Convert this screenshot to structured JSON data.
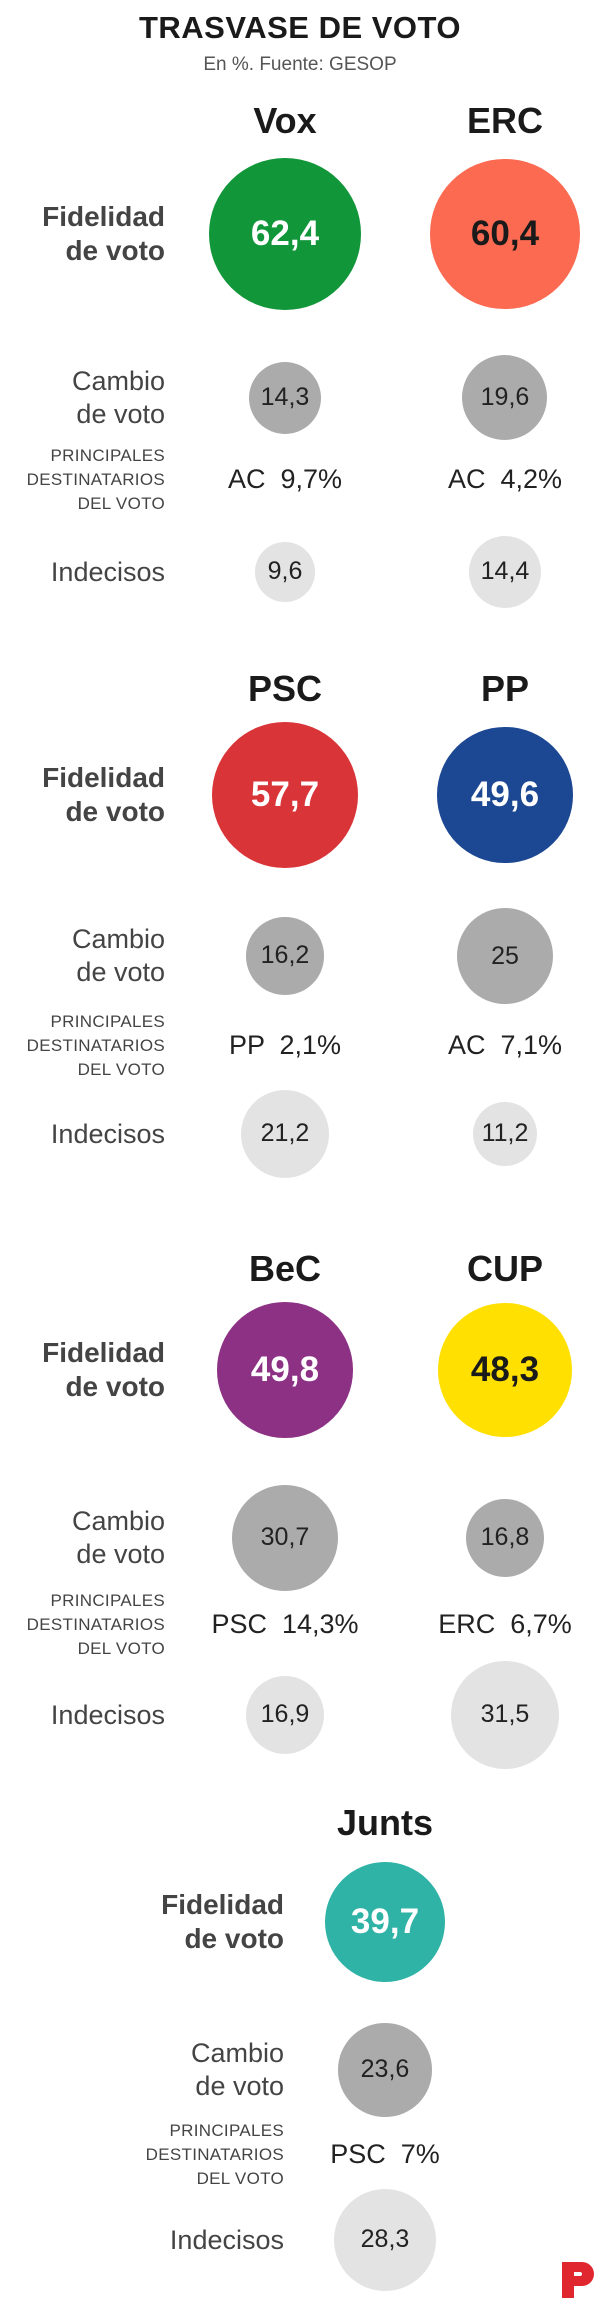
{
  "title": "TRASVASE DE VOTO",
  "subtitle": "En %. Fuente: GESOP",
  "labels": {
    "fidelidad": [
      "Fidelidad",
      "de voto"
    ],
    "cambio": [
      "Cambio",
      "de voto"
    ],
    "principales": [
      "PRINCIPALES",
      "DESTINATARIOS",
      "DEL VOTO"
    ],
    "indecisos": "Indecisos"
  },
  "chart_data": {
    "type": "proportional circles",
    "unit": "%",
    "source": "GESOP",
    "series_rows": [
      "Fidelidad de voto",
      "Cambio de voto",
      "Principales destinatarios del voto",
      "Indecisos"
    ],
    "parties": [
      {
        "name": "Vox",
        "fidelidad": 62.4,
        "fidelidad_label": "62,4",
        "cambio": 14.3,
        "cambio_label": "14,3",
        "destinatario": "AC",
        "destinatario_pct": "9,7%",
        "indecisos": 9.6,
        "indecisos_label": "9,6",
        "color": "#12963a",
        "text_color": "#ffffff"
      },
      {
        "name": "ERC",
        "fidelidad": 60.4,
        "fidelidad_label": "60,4",
        "cambio": 19.6,
        "cambio_label": "19,6",
        "destinatario": "AC",
        "destinatario_pct": "4,2%",
        "indecisos": 14.4,
        "indecisos_label": "14,4",
        "color": "#fb6a51",
        "text_color": "#1a1a1a"
      },
      {
        "name": "PSC",
        "fidelidad": 57.7,
        "fidelidad_label": "57,7",
        "cambio": 16.2,
        "cambio_label": "16,2",
        "destinatario": "PP",
        "destinatario_pct": "2,1%",
        "indecisos": 21.2,
        "indecisos_label": "21,2",
        "color": "#d93437",
        "text_color": "#ffffff"
      },
      {
        "name": "PP",
        "fidelidad": 49.6,
        "fidelidad_label": "49,6",
        "cambio": 25,
        "cambio_label": "25",
        "destinatario": "AC",
        "destinatario_pct": "7,1%",
        "indecisos": 11.2,
        "indecisos_label": "11,2",
        "color": "#1c4893",
        "text_color": "#ffffff"
      },
      {
        "name": "BeC",
        "fidelidad": 49.8,
        "fidelidad_label": "49,8",
        "cambio": 30.7,
        "cambio_label": "30,7",
        "destinatario": "PSC",
        "destinatario_pct": "14,3%",
        "indecisos": 16.9,
        "indecisos_label": "16,9",
        "color": "#8c3184",
        "text_color": "#ffffff"
      },
      {
        "name": "CUP",
        "fidelidad": 48.3,
        "fidelidad_label": "48,3",
        "cambio": 16.8,
        "cambio_label": "16,8",
        "destinatario": "ERC",
        "destinatario_pct": "6,7%",
        "indecisos": 31.5,
        "indecisos_label": "31,5",
        "color": "#ffe000",
        "text_color": "#1a1a1a"
      },
      {
        "name": "Junts",
        "fidelidad": 39.7,
        "fidelidad_label": "39,7",
        "cambio": 23.6,
        "cambio_label": "23,6",
        "destinatario": "PSC",
        "destinatario_pct": "7%",
        "indecisos": 28.3,
        "indecisos_label": "28,3",
        "color": "#2fb3a6",
        "text_color": "#ffffff"
      }
    ],
    "colors": {
      "cambio": "#ababab",
      "indecisos": "#e3e3e3"
    }
  }
}
